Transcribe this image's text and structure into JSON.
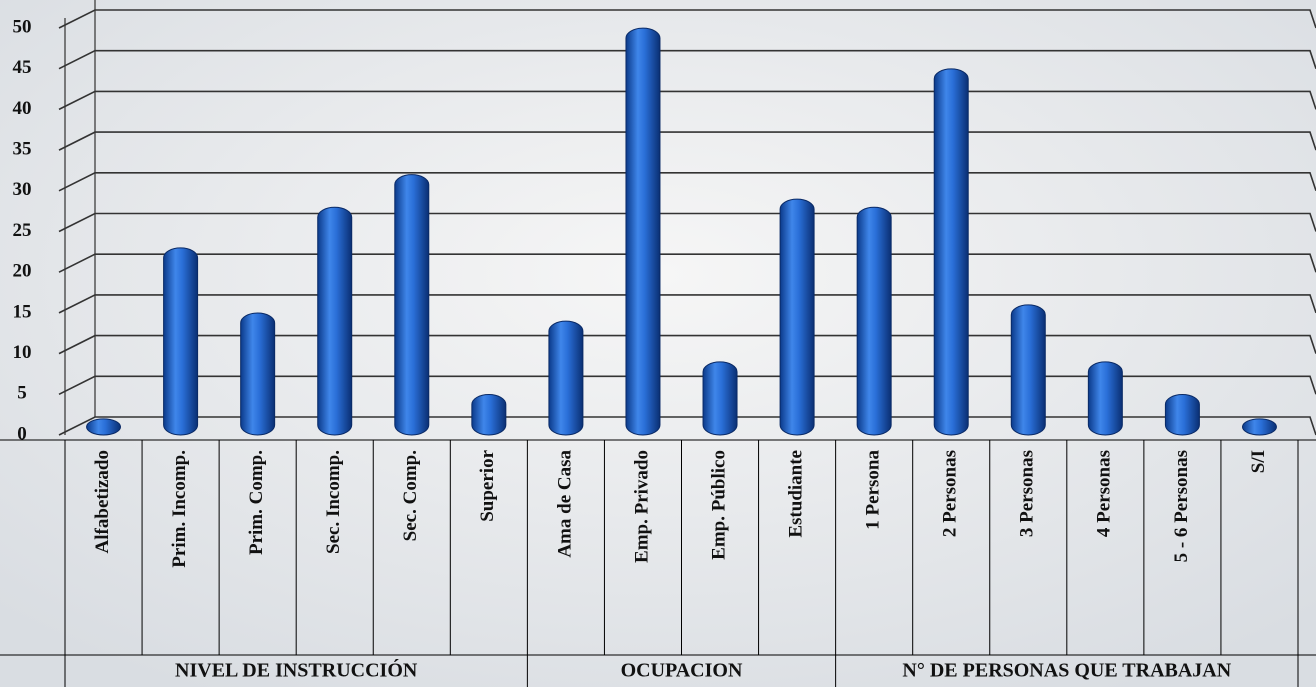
{
  "chart_data": {
    "type": "bar",
    "color": "#1f5fc8",
    "ylim": [
      0,
      50
    ],
    "yticks": [
      0,
      5,
      10,
      15,
      20,
      25,
      30,
      35,
      40,
      45,
      50
    ],
    "grid": true,
    "groups": [
      {
        "name": "NIVEL DE INSTRUCCIÓN",
        "categories": [
          "Alfabetizado",
          "Prim. Incomp.",
          "Prim. Comp.",
          "Sec. Incomp.",
          "Sec. Comp.",
          "Superior"
        ],
        "values": [
          1,
          22,
          14,
          27,
          31,
          4
        ]
      },
      {
        "name": "OCUPACION",
        "categories": [
          "Ama de Casa",
          "Emp. Privado",
          "Emp. Público",
          "Estudiante"
        ],
        "values": [
          13,
          49,
          8,
          28
        ]
      },
      {
        "name": "N° DE PERSONAS QUE TRABAJAN",
        "categories": [
          "1 Persona",
          "2 Personas",
          "3 Personas",
          "4 Personas",
          "5 - 6 Personas",
          "S/I"
        ],
        "values": [
          27,
          44,
          15,
          8,
          4,
          1
        ]
      }
    ]
  }
}
